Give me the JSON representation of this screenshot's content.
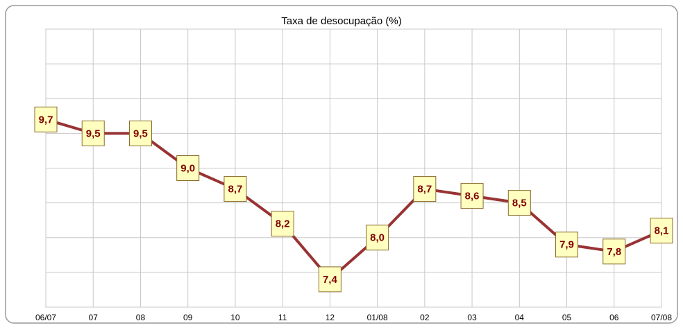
{
  "chart_data": {
    "type": "line",
    "title": "Taxa de desocupação (%)",
    "categories": [
      "06/07",
      "07",
      "08",
      "09",
      "10",
      "11",
      "12",
      "01/08",
      "02",
      "03",
      "04",
      "05",
      "06",
      "07/08"
    ],
    "values": [
      9.7,
      9.5,
      9.5,
      9.0,
      8.7,
      8.2,
      7.4,
      8.0,
      8.7,
      8.6,
      8.5,
      7.9,
      7.8,
      8.1
    ],
    "value_labels": [
      "9,7",
      "9,5",
      "9,5",
      "9,0",
      "8,7",
      "8,2",
      "7,4",
      "8,0",
      "8,7",
      "8,6",
      "8,5",
      "7,9",
      "7,8",
      "8,1"
    ],
    "color": "#993333",
    "ylim": [
      7,
      11
    ],
    "yticks": [
      7,
      7.5,
      8,
      8.5,
      9,
      9.5,
      10,
      10.5,
      11
    ],
    "grid": true
  }
}
